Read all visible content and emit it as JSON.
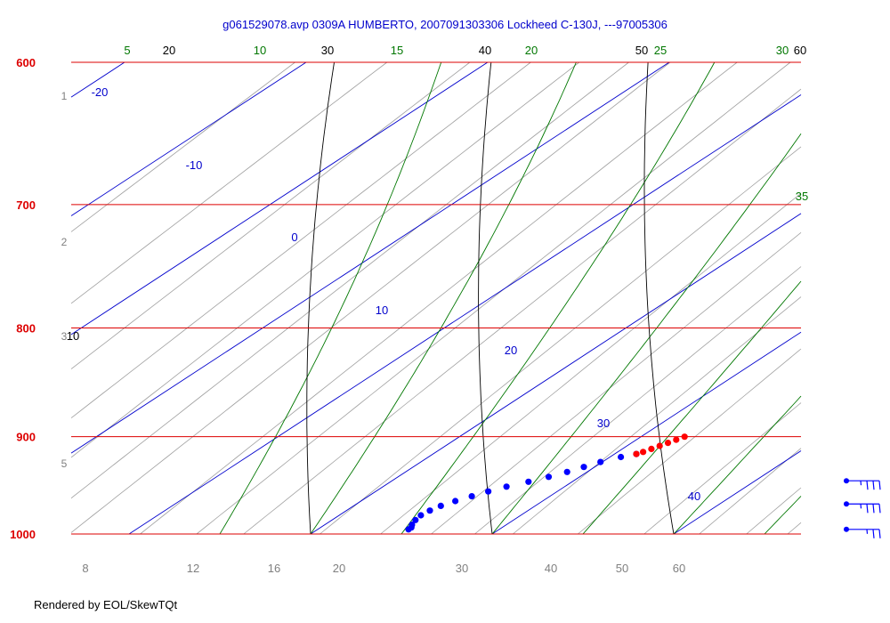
{
  "chart_data": {
    "type": "skew-t",
    "title": "g061529078.avp  0309A HUMBERTO, 2007091303306 Lockheed C-130J, ---97005306",
    "pressure_levels_hPa": [
      {
        "label": "600",
        "value": 600
      },
      {
        "label": "700",
        "value": 700
      },
      {
        "label": "800",
        "value": 800
      },
      {
        "label": "900",
        "value": 900
      },
      {
        "label": "1000",
        "value": 1000
      }
    ],
    "isotherm_labels_C": [
      "-20",
      "-10",
      "0",
      "10",
      "20",
      "30",
      "40"
    ],
    "dry_adiabat_labels_C": [
      "20",
      "30",
      "40",
      "50",
      "60",
      "10"
    ],
    "moist_adiabat_labels_C": [
      "5",
      "10",
      "15",
      "20",
      "25",
      "30",
      "35"
    ],
    "altitude_labels_km": [
      "1",
      "2",
      "3",
      "5"
    ],
    "mixing_ratio_labels_gkg": [
      "8",
      "12",
      "16",
      "20",
      "30",
      "40",
      "50",
      "60"
    ],
    "temperature_profile": {
      "color": "#ff0000",
      "points": [
        {
          "p": 900,
          "t": 22.4
        },
        {
          "p": 903,
          "t": 22.2
        },
        {
          "p": 906,
          "t": 22.0
        },
        {
          "p": 909,
          "t": 21.8
        },
        {
          "p": 912,
          "t": 21.6
        },
        {
          "p": 915,
          "t": 21.4
        },
        {
          "p": 917,
          "t": 21.2
        }
      ]
    },
    "dewpoint_profile": {
      "color": "#0000ff",
      "points": [
        {
          "p": 917,
          "t": 21.2
        },
        {
          "p": 920,
          "t": 20.6
        },
        {
          "p": 925,
          "t": 19.9
        },
        {
          "p": 930,
          "t": 19.4
        },
        {
          "p": 935,
          "t": 18.9
        },
        {
          "p": 940,
          "t": 18.3
        },
        {
          "p": 945,
          "t": 17.6
        },
        {
          "p": 950,
          "t": 16.8
        },
        {
          "p": 955,
          "t": 16.2
        },
        {
          "p": 960,
          "t": 15.7
        },
        {
          "p": 965,
          "t": 15.2
        },
        {
          "p": 970,
          "t": 14.8
        },
        {
          "p": 975,
          "t": 14.6
        },
        {
          "p": 980,
          "t": 14.5
        },
        {
          "p": 985,
          "t": 14.6
        },
        {
          "p": 990,
          "t": 14.8
        },
        {
          "p": 993,
          "t": 15.0
        },
        {
          "p": 995,
          "t": 15.0
        }
      ]
    },
    "wind_barbs": [
      {
        "p": 944,
        "speed_kt": 35
      },
      {
        "p": 968,
        "speed_kt": 35
      },
      {
        "p": 995,
        "speed_kt": 25
      }
    ]
  },
  "footer": "Rendered by EOL/SkewTQt"
}
